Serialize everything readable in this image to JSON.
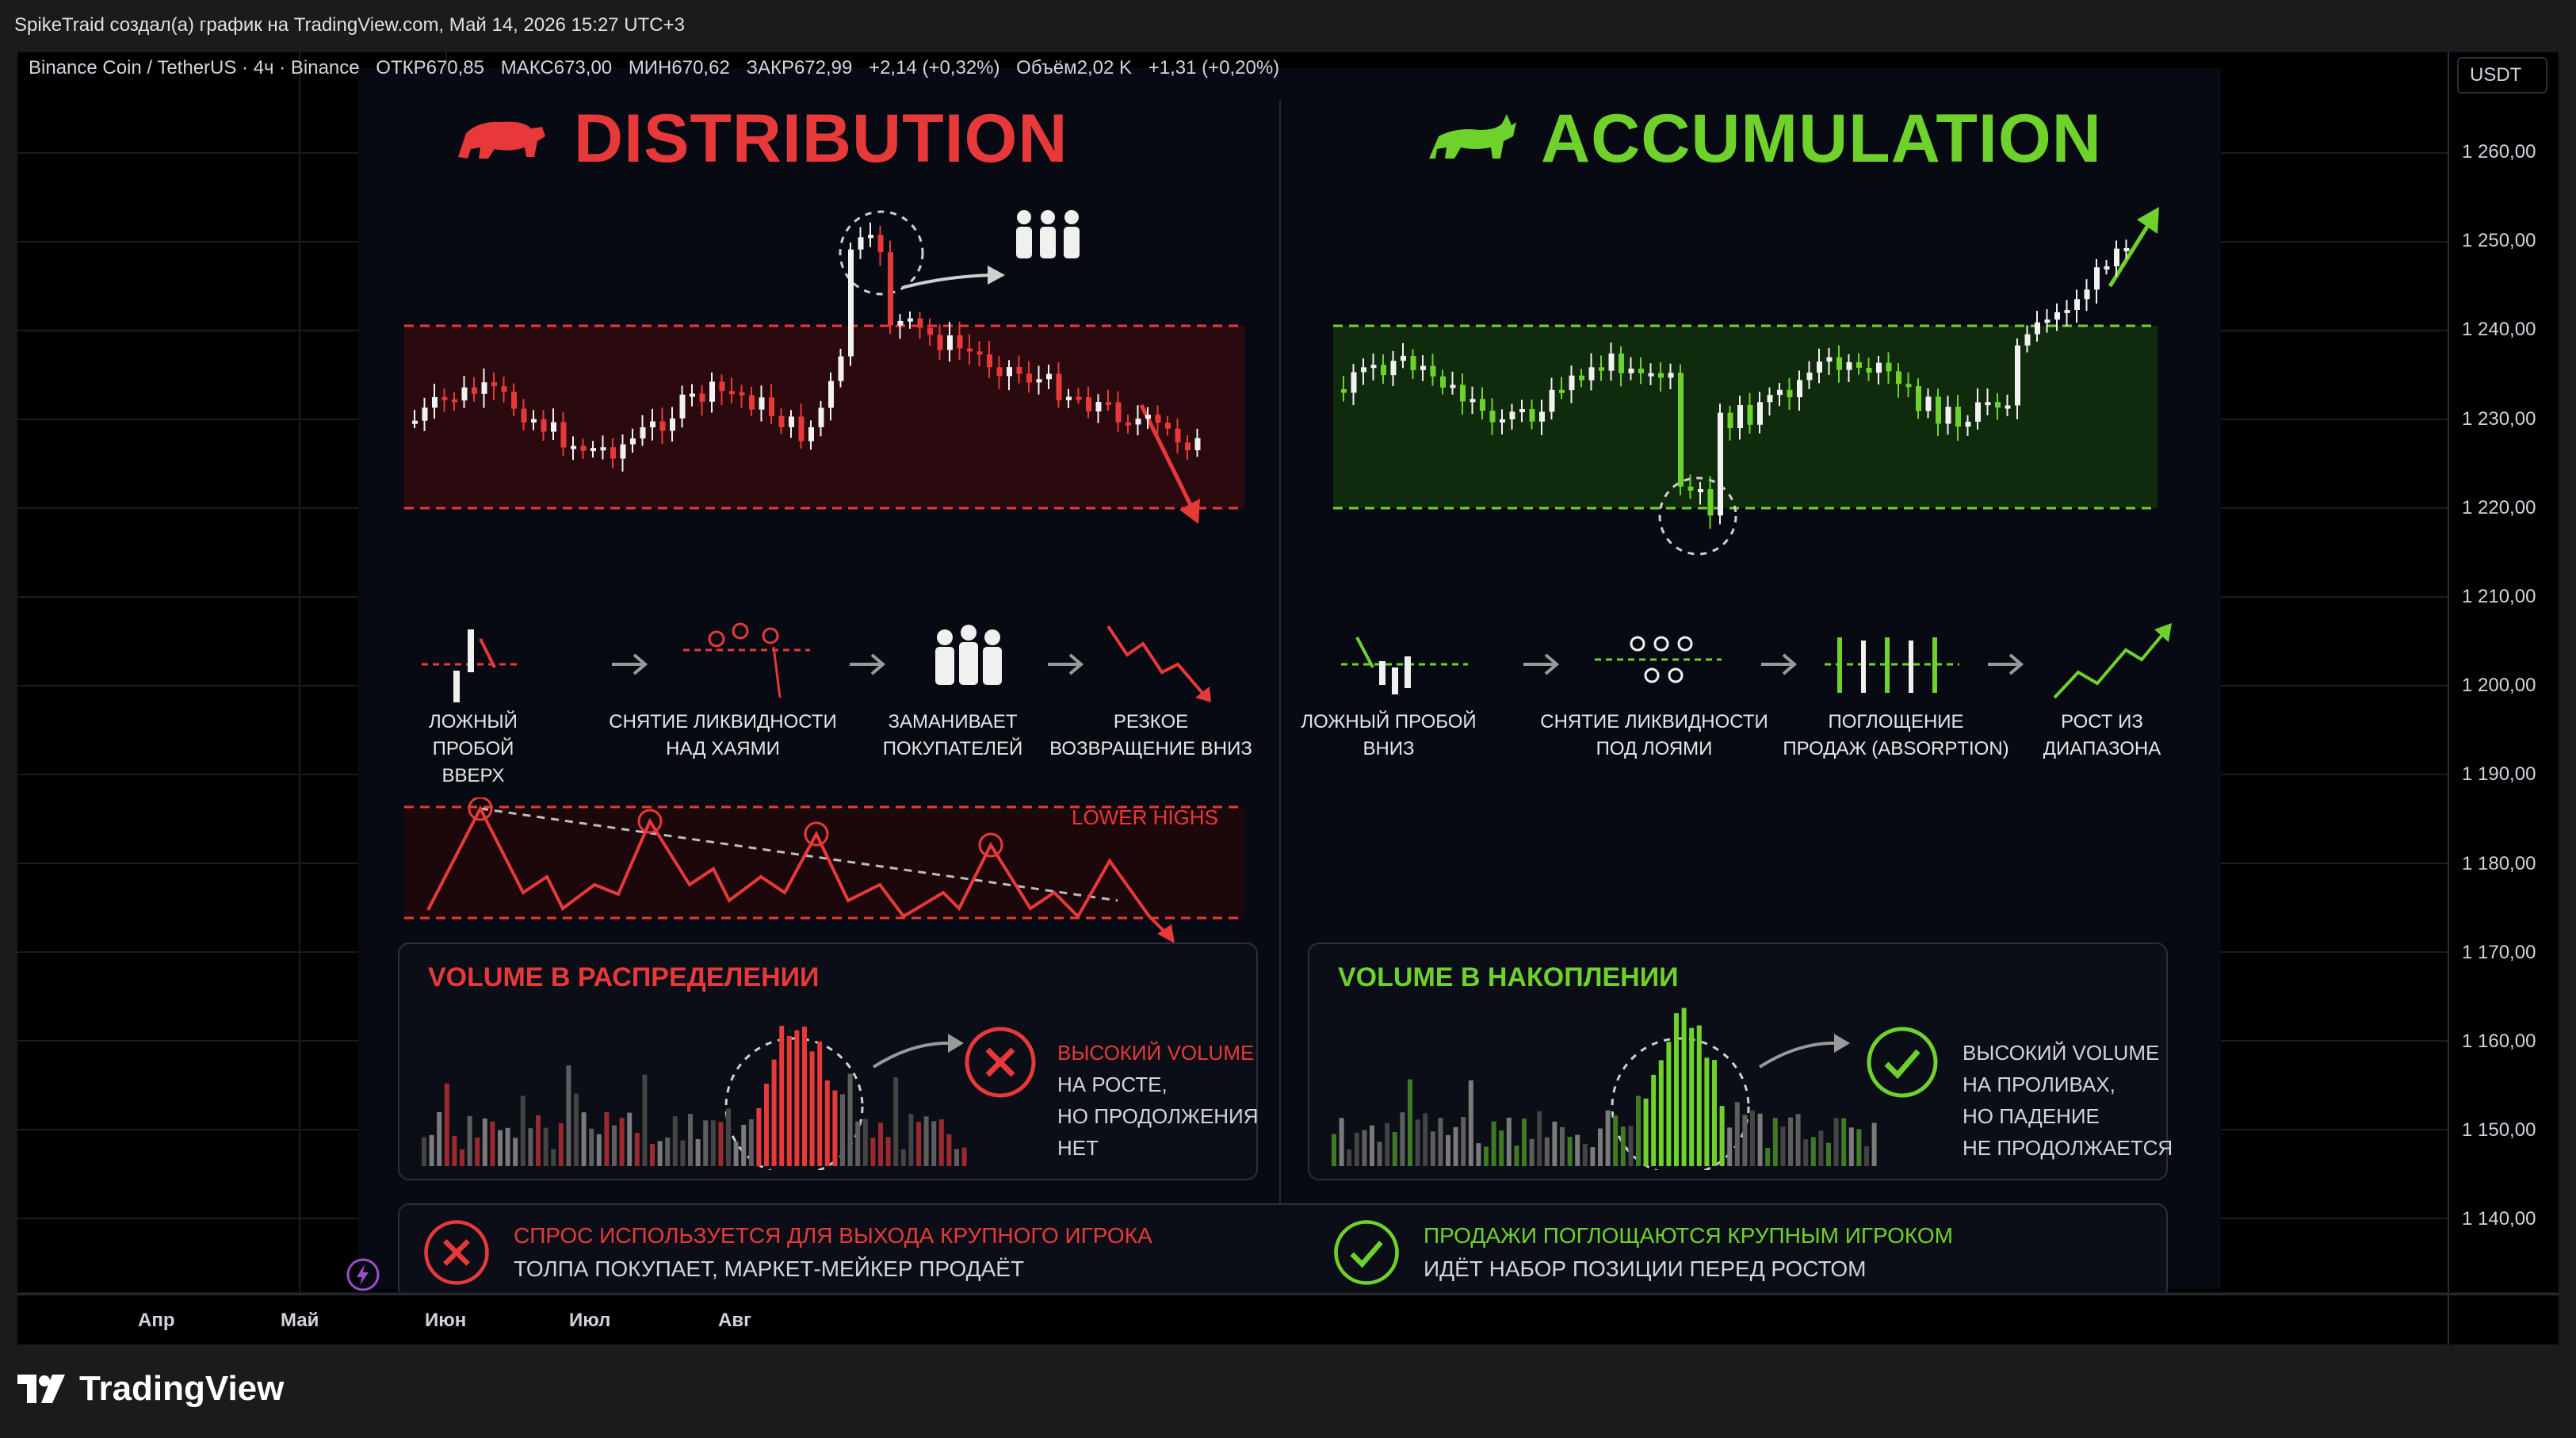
{
  "header": {
    "text": "SpikeTraid создал(а) график на TradingView.com, Май 14, 2026 15:27 UTC+3"
  },
  "legend": {
    "symbol": "Binance Coin / TetherUS · 4ч · Binance",
    "open": "ОТКР670,85",
    "high": "МАКС673,00",
    "low": "МИН670,62",
    "close": "ЗАКР672,99",
    "change": "+2,14 (+0,32%)",
    "volume": "Объём2,02 K",
    "vchange": "+1,31 (+0,20%)"
  },
  "price_axis": {
    "currency": "USDT",
    "labels": [
      "1 260,00",
      "1 250,00",
      "1 240,00",
      "1 230,00",
      "1 220,00",
      "1 210,00",
      "1 200,00",
      "1 190,00",
      "1 180,00",
      "1 170,00",
      "1 160,00",
      "1 150,00",
      "1 140,00"
    ]
  },
  "time_axis": {
    "labels": [
      "Апр",
      "Май",
      "Июн",
      "Июл",
      "Авг"
    ]
  },
  "brand": {
    "name": "TradingView"
  },
  "distribution": {
    "title": "DISTRIBUTION",
    "steps": [
      {
        "l1": "ЛОЖНЫЙ ПРОБОЙ",
        "l2": "ВВЕРХ"
      },
      {
        "l1": "СНЯТИЕ ЛИКВИДНОСТИ",
        "l2": "НАД ХАЯМИ"
      },
      {
        "l1": "ЗАМАНИВАЕТ",
        "l2": "ПОКУПАТЕЛЕЙ"
      },
      {
        "l1": "РЕЗКОЕ",
        "l2": "ВОЗВРАЩЕНИЕ ВНИЗ"
      }
    ],
    "lower_highs": "LOWER HIGHS",
    "volume_title": "VOLUME В РАСПРЕДЕЛЕНИИ",
    "volume_lines": [
      "ВЫСОКИЙ VOLUME",
      "НА РОСТЕ,",
      "НО ПРОДОЛЖЕНИЯ",
      "НЕТ"
    ],
    "bottom_l1": "СПРОС ИСПОЛЬЗУЕТСЯ ДЛЯ ВЫХОДА КРУПНОГО ИГРОКА",
    "bottom_l2": "ТОЛПА ПОКУПАЕТ, МАРКЕТ-МЕЙКЕР ПРОДАЁТ",
    "color": "#e8393a"
  },
  "accumulation": {
    "title": "ACCUMULATION",
    "steps": [
      {
        "l1": "ЛОЖНЫЙ ПРОБОЙ",
        "l2": "ВНИЗ"
      },
      {
        "l1": "СНЯТИЕ ЛИКВИДНОСТИ",
        "l2": "ПОД ЛОЯМИ"
      },
      {
        "l1": "ПОГЛОЩЕНИЕ",
        "l2": "ПРОДАЖ (ABSORPTION)"
      },
      {
        "l1": "РОСТ ИЗ",
        "l2": "ДИАПАЗОНА"
      }
    ],
    "volume_title": "VOLUME В НАКОПЛЕНИИ",
    "volume_lines": [
      "ВЫСОКИЙ VOLUME",
      "НА ПРОЛИВАХ,",
      "НО ПАДЕНИЕ",
      "НЕ ПРОДОЛЖАЕТСЯ"
    ],
    "bottom_l1": "ПРОДАЖИ ПОГЛОЩАЮТСЯ КРУПНЫМ ИГРОКОМ",
    "bottom_l2": "ИДЁТ НАБОР ПОЗИЦИИ ПЕРЕД РОСТОМ",
    "color": "#6fd22c"
  },
  "icons": {
    "logo": "tradingview-logo",
    "bear": "bear-icon",
    "bull": "bull-icon",
    "cross": "cross-icon",
    "check": "check-icon",
    "flash": "lightning-icon"
  }
}
